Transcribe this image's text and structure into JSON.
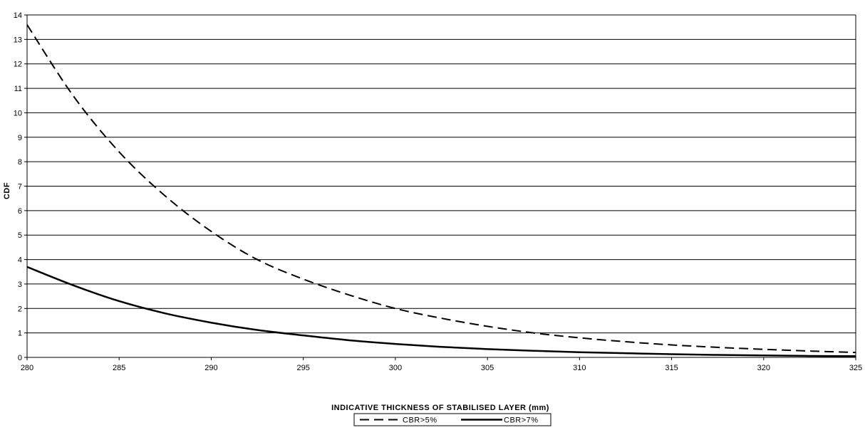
{
  "chart_data": {
    "type": "line",
    "title": "",
    "xlabel": "INDICATIVE THICKNESS OF STABILISED LAYER (mm)",
    "ylabel": "CDF",
    "xlim": [
      280,
      325
    ],
    "ylim": [
      0,
      14
    ],
    "xticks": [
      280,
      285,
      290,
      295,
      300,
      305,
      310,
      315,
      320,
      325
    ],
    "yticks": [
      0,
      1,
      2,
      3,
      4,
      5,
      6,
      7,
      8,
      9,
      10,
      11,
      12,
      13,
      14
    ],
    "grid": "horizontal",
    "legend_position": "bottom-center",
    "series": [
      {
        "name": "CBR>5%",
        "style": "dashed",
        "color": "#000000",
        "x": [
          280,
          282.5,
          285,
          287.5,
          290,
          292.5,
          295,
          297.5,
          300,
          302.5,
          305,
          307.5,
          310,
          312.5,
          315,
          317.5,
          320,
          322.5,
          325
        ],
        "y": [
          13.6,
          10.7,
          8.4,
          6.6,
          5.15,
          4.0,
          3.2,
          2.55,
          2.0,
          1.6,
          1.27,
          1.0,
          0.8,
          0.64,
          0.51,
          0.41,
          0.33,
          0.26,
          0.2
        ]
      },
      {
        "name": "CBR>7%",
        "style": "solid",
        "color": "#000000",
        "x": [
          280,
          282.5,
          285,
          287.5,
          290,
          292.5,
          295,
          297.5,
          300,
          302.5,
          305,
          307.5,
          310,
          312.5,
          315,
          317.5,
          320,
          322.5,
          325
        ],
        "y": [
          3.7,
          2.95,
          2.3,
          1.8,
          1.42,
          1.12,
          0.9,
          0.7,
          0.55,
          0.43,
          0.34,
          0.27,
          0.21,
          0.17,
          0.13,
          0.1,
          0.08,
          0.06,
          0.05
        ]
      }
    ]
  }
}
